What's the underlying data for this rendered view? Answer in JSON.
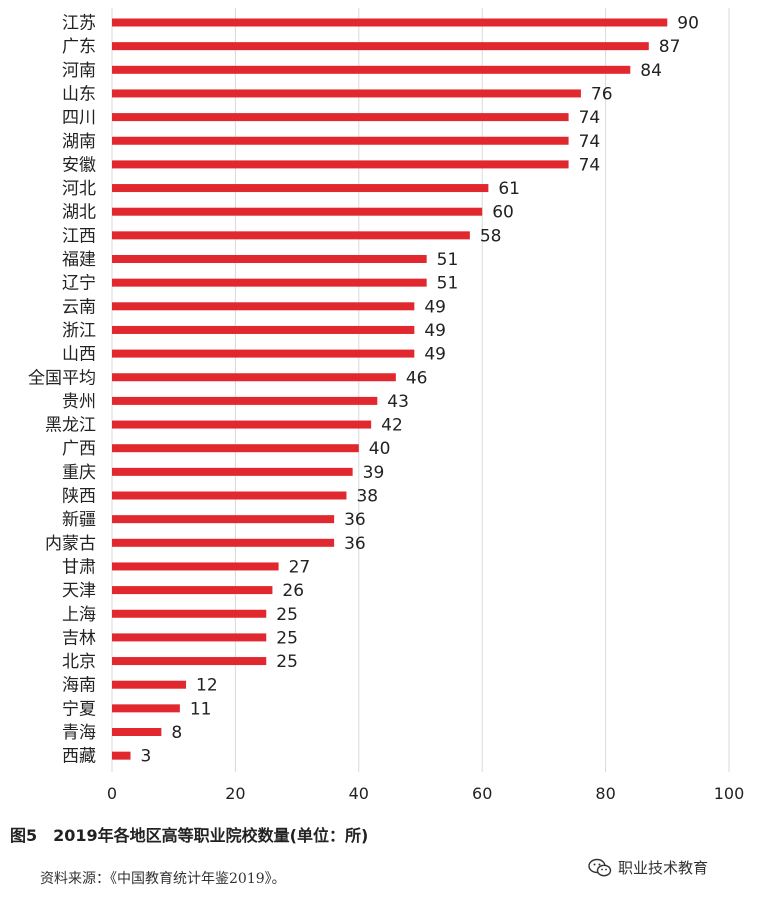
{
  "chart_data": {
    "type": "bar",
    "orientation": "horizontal",
    "categories": [
      "江苏",
      "广东",
      "河南",
      "山东",
      "四川",
      "湖南",
      "安徽",
      "河北",
      "湖北",
      "江西",
      "福建",
      "辽宁",
      "云南",
      "浙江",
      "山西",
      "全国平均",
      "贵州",
      "黑龙江",
      "广西",
      "重庆",
      "陕西",
      "新疆",
      "内蒙古",
      "甘肃",
      "天津",
      "上海",
      "吉林",
      "北京",
      "海南",
      "宁夏",
      "青海",
      "西藏"
    ],
    "values": [
      90,
      87,
      84,
      76,
      74,
      74,
      74,
      61,
      60,
      58,
      51,
      51,
      49,
      49,
      49,
      46,
      43,
      42,
      40,
      39,
      38,
      36,
      36,
      27,
      26,
      25,
      25,
      25,
      12,
      11,
      8,
      3
    ],
    "xlim": [
      0,
      100
    ],
    "xticks": [
      0,
      20,
      40,
      60,
      80,
      100
    ],
    "grid": "vertical",
    "bar_color": "#e0282e",
    "grid_color": "#d9d9d9"
  },
  "caption": "图5　2019年各地区高等职业院校数量(单位：所)",
  "source": "资料来源：《中国教育统计年鉴2019》。",
  "watermark": {
    "icon": "wechat-icon",
    "text": "职业技术教育"
  }
}
